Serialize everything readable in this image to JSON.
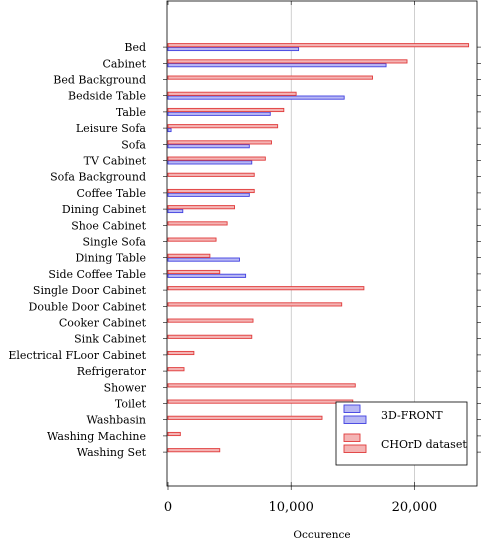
{
  "chart_data": {
    "type": "bar",
    "orientation": "horizontal",
    "categories": [
      "Bed",
      "Cabinet",
      "Bed Background",
      "Bedside Table",
      "Table",
      "Leisure Sofa",
      "Sofa",
      "TV Cabinet",
      "Sofa Background",
      "Coffee Table",
      "Dining Cabinet",
      "Shoe Cabinet",
      "Single Sofa",
      "Dining Table",
      "Side Coffee Table",
      "Single Door Cabinet",
      "Double Door Cabinet",
      "Cooker Cabinet",
      "Sink Cabinet",
      "Electrical FLoor Cabinet",
      "Refrigerator",
      "Shower",
      "Toilet",
      "Washbasin",
      "Washing Machine",
      "Washing Set"
    ],
    "series": [
      {
        "name": "3D-FRONT",
        "color": "#4040e0",
        "fill": "#b8b8f4",
        "values": [
          10600,
          17700,
          null,
          14300,
          8300,
          250,
          6600,
          6800,
          null,
          6600,
          1200,
          null,
          null,
          5800,
          6300,
          null,
          null,
          null,
          null,
          null,
          null,
          null,
          null,
          null,
          null,
          null
        ]
      },
      {
        "name": "CHOrD dataset",
        "color": "#e03a3a",
        "fill": "#f4b4b4",
        "values": [
          24400,
          19400,
          16600,
          10400,
          9400,
          8900,
          8400,
          7900,
          7000,
          7000,
          5400,
          4800,
          3900,
          3400,
          4200,
          15900,
          14100,
          6900,
          6800,
          2100,
          1300,
          15200,
          15000,
          12500,
          1000,
          4200
        ]
      }
    ],
    "xlabel": "Occurence",
    "xlim": [
      0,
      25000
    ],
    "xticks": [
      0,
      10000,
      20000
    ],
    "xtick_labels": [
      "0",
      "10,000",
      "20,000"
    ],
    "grid": "vertical",
    "legend_position": "bottom-right"
  }
}
